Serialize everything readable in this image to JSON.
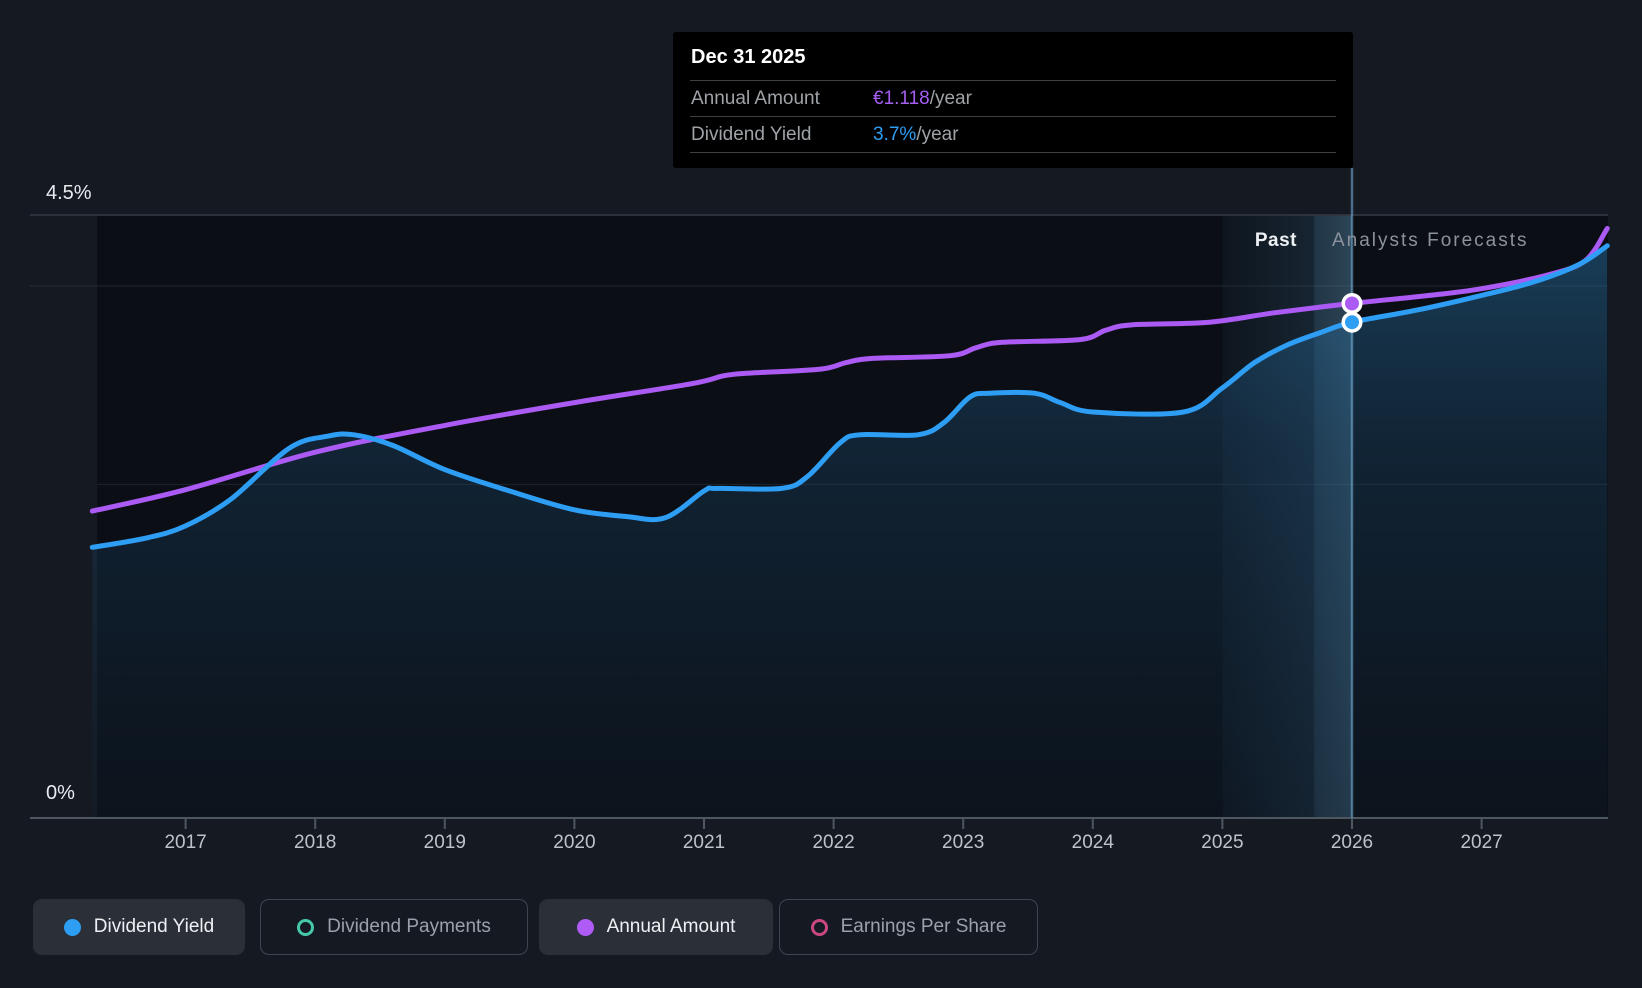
{
  "tooltip": {
    "title": "Dec 31 2025",
    "rows": [
      {
        "label": "Annual Amount",
        "value": "€1.118",
        "suffix": "/year",
        "color": "#a55ef2"
      },
      {
        "label": "Dividend Yield",
        "value": "3.7%",
        "suffix": "/year",
        "color": "#2f9ef5"
      }
    ]
  },
  "chart_data": {
    "type": "area",
    "title": "Dividend history and forecast",
    "x_axis": {
      "ticks": [
        2017,
        2018,
        2019,
        2020,
        2021,
        2022,
        2023,
        2024,
        2025,
        2026,
        2027
      ],
      "range": [
        2016.28,
        2027.97
      ]
    },
    "y_axis": {
      "top_label": "4.5%",
      "bottom_label": "0%",
      "range_pct": [
        0,
        4.5
      ],
      "gridlines": [
        {
          "pct": 4.5,
          "strong": true,
          "full_width": true
        },
        {
          "pct": 3.97,
          "strong": false,
          "full_width": true
        },
        {
          "pct": 2.49,
          "strong": false,
          "full_width": false
        },
        {
          "pct": 0,
          "strong": true,
          "full_width": true
        }
      ]
    },
    "annotations": {
      "past_label": "Past",
      "forecast_label": "Analysts Forecasts",
      "forecast_divider_year": 2025.715,
      "hover_band_years": [
        2025.0,
        2026.0
      ],
      "hover_year": 2026.0,
      "hover_date": "Dec 31 2025"
    },
    "series": [
      {
        "name": "Dividend Yield",
        "color": "#2e9df4",
        "area": true,
        "hover_value": "3.7%/year",
        "hover_pct": 3.7,
        "points": [
          [
            2016.28,
            2.02
          ],
          [
            2016.7,
            2.09
          ],
          [
            2017.0,
            2.18
          ],
          [
            2017.35,
            2.38
          ],
          [
            2017.8,
            2.76
          ],
          [
            2018.1,
            2.85
          ],
          [
            2018.3,
            2.86
          ],
          [
            2018.6,
            2.78
          ],
          [
            2019.0,
            2.6
          ],
          [
            2019.5,
            2.44
          ],
          [
            2020.0,
            2.3
          ],
          [
            2020.4,
            2.25
          ],
          [
            2020.7,
            2.24
          ],
          [
            2021.0,
            2.44
          ],
          [
            2021.1,
            2.46
          ],
          [
            2021.6,
            2.46
          ],
          [
            2021.8,
            2.55
          ],
          [
            2022.05,
            2.8
          ],
          [
            2022.2,
            2.86
          ],
          [
            2022.65,
            2.86
          ],
          [
            2022.85,
            2.95
          ],
          [
            2023.05,
            3.14
          ],
          [
            2023.2,
            3.17
          ],
          [
            2023.55,
            3.17
          ],
          [
            2023.75,
            3.1
          ],
          [
            2024.0,
            3.03
          ],
          [
            2024.7,
            3.03
          ],
          [
            2025.0,
            3.21
          ],
          [
            2025.25,
            3.4
          ],
          [
            2025.5,
            3.53
          ],
          [
            2025.75,
            3.62
          ],
          [
            2026.0,
            3.7
          ],
          [
            2026.5,
            3.79
          ],
          [
            2027.0,
            3.9
          ],
          [
            2027.4,
            4.0
          ],
          [
            2027.75,
            4.13
          ],
          [
            2027.97,
            4.27
          ]
        ]
      },
      {
        "name": "Annual Amount",
        "color": "#ab5af3",
        "area": false,
        "hover_value": "€1.118/year",
        "hover_pct": 3.84,
        "points": [
          [
            2016.28,
            2.29
          ],
          [
            2017.0,
            2.45
          ],
          [
            2018.0,
            2.73
          ],
          [
            2019.0,
            2.93
          ],
          [
            2020.0,
            3.1
          ],
          [
            2020.9,
            3.24
          ],
          [
            2021.15,
            3.3
          ],
          [
            2021.35,
            3.32
          ],
          [
            2021.9,
            3.35
          ],
          [
            2022.1,
            3.4
          ],
          [
            2022.3,
            3.43
          ],
          [
            2022.9,
            3.45
          ],
          [
            2023.1,
            3.51
          ],
          [
            2023.3,
            3.55
          ],
          [
            2023.9,
            3.57
          ],
          [
            2024.1,
            3.64
          ],
          [
            2024.3,
            3.68
          ],
          [
            2024.9,
            3.7
          ],
          [
            2025.4,
            3.77
          ],
          [
            2026.0,
            3.84
          ],
          [
            2026.6,
            3.9
          ],
          [
            2027.0,
            3.95
          ],
          [
            2027.5,
            4.05
          ],
          [
            2027.8,
            4.16
          ],
          [
            2027.97,
            4.4
          ]
        ]
      }
    ]
  },
  "legend": [
    {
      "label": "Dividend Yield",
      "marker": "filled",
      "color": "#2e9df4",
      "active": true
    },
    {
      "label": "Dividend Payments",
      "marker": "open",
      "color": "#46c8ab",
      "active": false
    },
    {
      "label": "Annual Amount",
      "marker": "filled",
      "color": "#ae5cf5",
      "active": true
    },
    {
      "label": "Earnings Per Share",
      "marker": "open",
      "color": "#c9487f",
      "active": false
    }
  ],
  "colors": {
    "page_bg": "#151a22",
    "plot_bg": "#0b0f15",
    "axis": "#4e565f",
    "grid_strong": "#2f3640",
    "cursor_line": "#78b4dc",
    "tooltip_bg": "#000000",
    "white_text": "#ffffff",
    "gray_text": "#9fa3a8"
  }
}
